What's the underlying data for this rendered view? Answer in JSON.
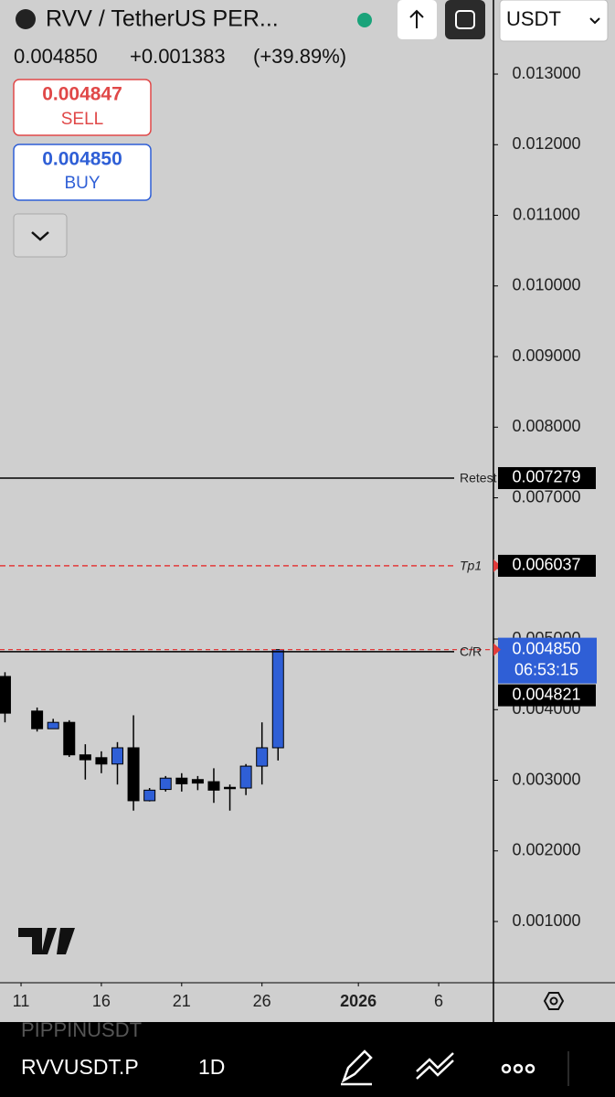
{
  "header": {
    "symbol": "RVV / TetherUS PER...",
    "price": "0.004850",
    "change": "+0.001383",
    "change_pct": "(+39.89%)",
    "sell_price": "0.004847",
    "sell": "SELL",
    "buy_price": "0.004850",
    "buy": "BUY",
    "currency": "USDT"
  },
  "chart_data": {
    "type": "candlestick",
    "x": [
      10,
      12,
      13,
      14,
      15,
      16,
      17,
      18,
      19,
      20,
      21,
      22,
      23,
      24,
      25,
      26,
      27
    ],
    "open": [
      0.00447,
      0.00398,
      0.00373,
      0.00382,
      0.00336,
      0.00332,
      0.00323,
      0.00346,
      0.00271,
      0.00287,
      0.00303,
      0.00301,
      0.00298,
      0.0029,
      0.00289,
      0.0032,
      0.00346
    ],
    "high": [
      0.00453,
      0.00403,
      0.00387,
      0.00385,
      0.00351,
      0.00341,
      0.00354,
      0.00392,
      0.00289,
      0.00306,
      0.0031,
      0.00306,
      0.00317,
      0.00294,
      0.00323,
      0.00382,
      0.00485
    ],
    "low": [
      0.00382,
      0.00369,
      0.00373,
      0.00333,
      0.00301,
      0.0031,
      0.00294,
      0.00257,
      0.0027,
      0.00284,
      0.00284,
      0.00286,
      0.00268,
      0.00257,
      0.00279,
      0.00294,
      0.00328
    ],
    "close": [
      0.00395,
      0.00373,
      0.00382,
      0.00336,
      0.00329,
      0.00323,
      0.00346,
      0.00271,
      0.00286,
      0.00303,
      0.00295,
      0.00296,
      0.00286,
      0.00289,
      0.0032,
      0.00346,
      0.00485
    ],
    "up_color": "#2f5fd6",
    "down_color": "#000000",
    "xlim": [
      9.69,
      40.41
    ],
    "xticks": [
      11,
      16,
      21,
      26,
      {
        "value": 32,
        "label": "2026"
      },
      {
        "value": 37,
        "label": "6"
      }
    ],
    "ylim": [
      0.000133,
      0.014049
    ],
    "yticks": [
      {
        "value": 0.001,
        "label": "0.001000"
      },
      {
        "value": 0.002,
        "label": "0.002000"
      },
      {
        "value": 0.003,
        "label": "0.003000"
      },
      {
        "value": 0.004,
        "label": "0.004000"
      },
      {
        "value": 0.005,
        "label": "0.005000"
      },
      {
        "value": 0.006,
        "label": "0.006000"
      },
      {
        "value": 0.007,
        "label": "0.007000"
      },
      {
        "value": 0.008,
        "label": "0.008000"
      },
      {
        "value": 0.009,
        "label": "0.009000"
      },
      {
        "value": 0.01,
        "label": "0.010000"
      },
      {
        "value": 0.011,
        "label": "0.011000"
      },
      {
        "value": 0.012,
        "label": "0.012000"
      },
      {
        "value": 0.013,
        "label": "0.013000"
      }
    ],
    "levels": [
      {
        "name": "Retest",
        "value": 0.007279,
        "value_label": "0.007279",
        "color": "#000000",
        "style": "solid"
      },
      {
        "name": "Tp1",
        "value": 0.006037,
        "value_label": "0.006037",
        "color": "#e23b3b",
        "style": "dashed"
      },
      {
        "name": "C/R",
        "value": 0.004821,
        "value_label": "0.004821",
        "color": "#000000",
        "style": "solid"
      }
    ],
    "price_tag": {
      "value": 0.00485,
      "label": "0.004850",
      "countdown": "06:53:15",
      "color": "#2f5fd6"
    }
  },
  "footer": {
    "watermark": "PIPPINUSDT",
    "symbol": "RVVUSDT.P",
    "interval": "1D"
  }
}
